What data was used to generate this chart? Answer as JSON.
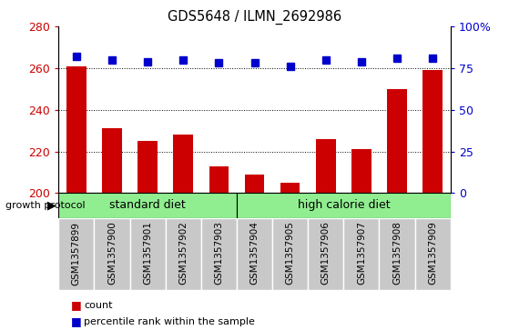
{
  "title": "GDS5648 / ILMN_2692986",
  "samples": [
    "GSM1357899",
    "GSM1357900",
    "GSM1357901",
    "GSM1357902",
    "GSM1357903",
    "GSM1357904",
    "GSM1357905",
    "GSM1357906",
    "GSM1357907",
    "GSM1357908",
    "GSM1357909"
  ],
  "counts": [
    261,
    231,
    225,
    228,
    213,
    209,
    205,
    226,
    221,
    250,
    259
  ],
  "percentile_ranks": [
    82,
    80,
    79,
    80,
    78,
    78,
    76,
    80,
    79,
    81,
    81
  ],
  "ylim_left": [
    200,
    280
  ],
  "ylim_right": [
    0,
    100
  ],
  "yticks_left": [
    200,
    220,
    240,
    260,
    280
  ],
  "yticks_right": [
    0,
    25,
    50,
    75,
    100
  ],
  "yticklabels_right": [
    "0",
    "25",
    "50",
    "75",
    "100%"
  ],
  "bar_color": "#cc0000",
  "dot_color": "#0000cc",
  "standard_diet_indices": [
    0,
    1,
    2,
    3,
    4
  ],
  "high_calorie_diet_indices": [
    5,
    6,
    7,
    8,
    9,
    10
  ],
  "standard_diet_label": "standard diet",
  "high_calorie_diet_label": "high calorie diet",
  "growth_protocol_label": "growth protocol",
  "legend_count_label": "count",
  "legend_percentile_label": "percentile rank within the sample",
  "bar_width": 0.55,
  "sample_bg_color": "#c8c8c8",
  "group_bg_color": "#90ee90",
  "dot_size": 6,
  "plot_bg_color": "#ffffff"
}
